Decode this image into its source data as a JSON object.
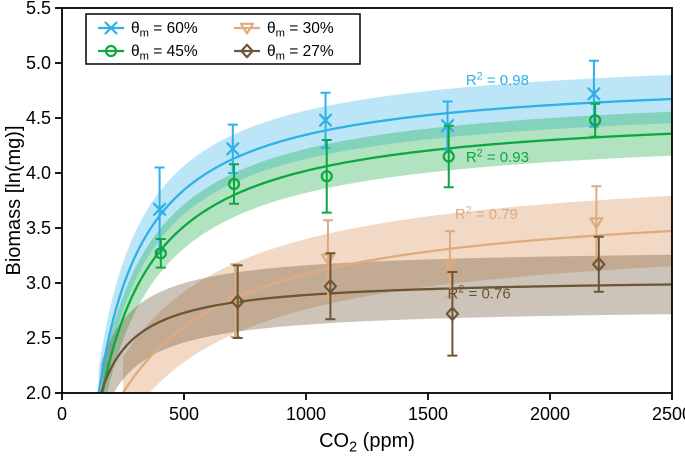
{
  "chart_data": {
    "type": "line",
    "subtype": "scatter-with-errorbars-fit-curves-confidence-bands",
    "title": "",
    "xlabel": {
      "pre": "CO",
      "sub": "2",
      "post": " (ppm)",
      "display": "CO2 (ppm)"
    },
    "ylabel": "Biomass [ln(mg)]",
    "xlim": [
      0,
      2500
    ],
    "ylim": [
      2.0,
      5.5
    ],
    "x_ticks": [
      0,
      500,
      1000,
      1500,
      2000,
      2500
    ],
    "x_tick_labels": [
      "0",
      "500",
      "1000",
      "1500",
      "2000",
      "2500"
    ],
    "y_ticks": [
      2.0,
      2.5,
      3.0,
      3.5,
      4.0,
      4.5,
      5.0,
      5.5
    ],
    "y_tick_labels": [
      "2.0",
      "2.5",
      "3.0",
      "3.5",
      "4.0",
      "4.5",
      "5.0",
      "5.5"
    ],
    "grid": false,
    "frame": true,
    "axis_color": "#000000",
    "legend": {
      "position": "upper-left",
      "border_color": "#000000",
      "fill": "#ffffff",
      "grid_order": [
        [
          0,
          2
        ],
        [
          1,
          3
        ]
      ]
    },
    "series": [
      {
        "id": "theta-m-60",
        "label": {
          "sym": "θ",
          "sub": "m",
          "rest": " = 60%",
          "display": "θm = 60%"
        },
        "color": "#2fb0e8",
        "marker": "x",
        "band_opacity": 0.32,
        "band_halfwidth": 0.22,
        "fit": {
          "model": "saturating",
          "base": 2.0,
          "x_start": 150,
          "amplitude": 2.9,
          "half_sat": 200
        },
        "r2": {
          "pre": "R",
          "sup": "2",
          "rest": " = 0.98",
          "value": 0.98,
          "pos": [
            1655,
            4.8
          ]
        },
        "points": {
          "x": [
            400,
            700,
            1080,
            1580,
            2180
          ],
          "y": [
            3.67,
            4.22,
            4.48,
            4.43,
            4.72
          ],
          "yerr": [
            0.38,
            0.22,
            0.25,
            0.22,
            0.3
          ]
        }
      },
      {
        "id": "theta-m-45",
        "label": {
          "sym": "θ",
          "sub": "m",
          "rest": " = 45%",
          "display": "θm = 45%"
        },
        "color": "#0ca83f",
        "marker": "circle",
        "band_opacity": 0.32,
        "band_halfwidth": 0.2,
        "fit": {
          "model": "saturating",
          "base": 2.0,
          "x_start": 165,
          "amplitude": 2.6,
          "half_sat": 240
        },
        "r2": {
          "pre": "R",
          "sup": "2",
          "rest": " = 0.93",
          "value": 0.93,
          "pos": [
            1655,
            4.1
          ]
        },
        "points": {
          "x": [
            405,
            705,
            1085,
            1585,
            2185
          ],
          "y": [
            3.27,
            3.9,
            3.97,
            4.15,
            4.48
          ],
          "yerr": [
            0.13,
            0.18,
            0.33,
            0.28,
            0.15
          ]
        }
      },
      {
        "id": "theta-m-30",
        "label": {
          "sym": "θ",
          "sub": "m",
          "rest": " = 30%",
          "display": "θm = 30%"
        },
        "color": "#dfab7e",
        "marker": "triangle-down",
        "band_opacity": 0.45,
        "band_halfwidth": 0.32,
        "fit": {
          "model": "saturating",
          "base": 2.0,
          "x_start": 250,
          "amplitude": 1.8,
          "half_sat": 500
        },
        "r2": {
          "pre": "R",
          "sup": "2",
          "rest": " = 0.79",
          "value": 0.79,
          "pos": [
            1610,
            3.58
          ]
        },
        "points": {
          "x": [
            710,
            1090,
            1590,
            2190
          ],
          "y": [
            2.84,
            3.22,
            3.17,
            3.55
          ],
          "yerr": [
            0.33,
            0.35,
            0.3,
            0.33
          ]
        }
      },
      {
        "id": "theta-m-27",
        "label": {
          "sym": "θ",
          "sub": "m",
          "rest": " = 27%",
          "display": "θm = 27%"
        },
        "color": "#6c5637",
        "marker": "diamond",
        "band_opacity": 0.35,
        "band_halfwidth": 0.27,
        "fit": {
          "model": "saturating",
          "base": 2.0,
          "x_start": 160,
          "amplitude": 1.05,
          "half_sat": 150
        },
        "r2": {
          "pre": "R",
          "sup": "2",
          "rest": " = 0.76",
          "value": 0.76,
          "pos": [
            1580,
            2.86
          ]
        },
        "points": {
          "x": [
            720,
            1100,
            1600,
            2200
          ],
          "y": [
            2.83,
            2.97,
            2.72,
            3.17
          ],
          "yerr": [
            0.33,
            0.3,
            0.38,
            0.25
          ]
        }
      }
    ]
  }
}
